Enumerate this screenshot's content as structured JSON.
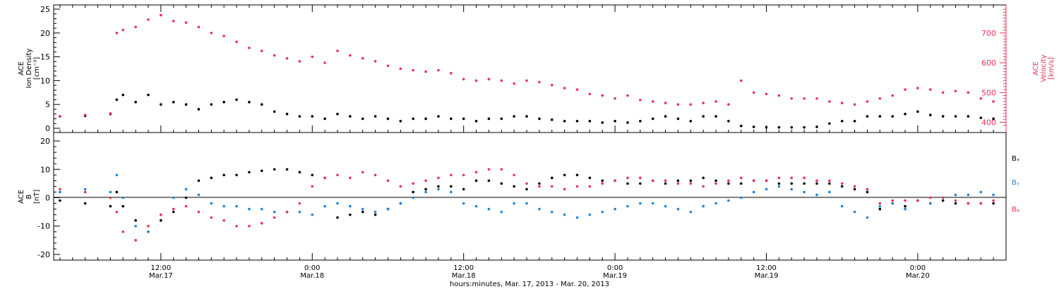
{
  "figure": {
    "xlabel": "hours:minutes, Mar. 17, 2013 - Mar. 20, 2013",
    "x_ticks": [
      {
        "time": "12:00",
        "date": "Mar.17"
      },
      {
        "time": "0:00",
        "date": "Mar.18"
      },
      {
        "time": "12:00",
        "date": "Mar.18"
      },
      {
        "time": "0:00",
        "date": "Mar.19"
      },
      {
        "time": "12:00",
        "date": "Mar.19"
      },
      {
        "time": "0:00",
        "date": "Mar.20"
      }
    ]
  },
  "chart_data": [
    {
      "type": "scatter",
      "panel": "top",
      "title": "",
      "x_unit": "hours since 2013-03-17 00:00",
      "xlim": [
        3.5,
        79
      ],
      "ylabel_left": [
        "ACE",
        "Ion Density",
        "[cm⁻³]"
      ],
      "ylim_left": [
        0,
        25
      ],
      "yticks_left": [
        "0",
        "5",
        "10",
        "15",
        "20",
        "25"
      ],
      "ylabel_right": [
        "ACE",
        "Velocity",
        "[km/s]"
      ],
      "ylim_right": [
        380,
        780
      ],
      "yticks_right": [
        "400",
        "500",
        "600",
        "700"
      ],
      "series": [
        {
          "name": "",
          "axis": "left",
          "color": "#000000",
          "x": [
            4,
            6,
            8,
            8.5,
            9,
            10,
            11,
            12,
            13,
            14,
            15,
            16,
            17,
            18,
            19,
            20,
            21,
            22,
            23,
            24,
            25,
            26,
            27,
            28,
            29,
            30,
            31,
            32,
            33,
            34,
            35,
            36,
            37,
            38,
            39,
            40,
            41,
            42,
            43,
            44,
            45,
            46,
            47,
            48,
            49,
            50,
            51,
            52,
            53,
            54,
            55,
            56,
            57,
            58,
            59,
            60,
            61,
            62,
            63,
            64,
            65,
            66,
            67,
            68,
            69,
            70,
            71,
            72,
            73,
            74,
            75,
            76,
            77,
            78
          ],
          "y": [
            2.5,
            2.6,
            3.0,
            6.0,
            7.0,
            5.5,
            7.0,
            5.0,
            5.5,
            5.0,
            4.0,
            5.0,
            5.5,
            6.0,
            5.5,
            5.0,
            3.5,
            3.0,
            2.5,
            2.5,
            2.0,
            3.0,
            2.5,
            2.0,
            2.5,
            2.0,
            1.5,
            2.0,
            2.0,
            2.5,
            2.0,
            2.0,
            1.5,
            2.0,
            2.0,
            2.5,
            2.5,
            2.0,
            1.8,
            1.5,
            1.5,
            1.5,
            1.2,
            1.5,
            1.2,
            1.5,
            2.0,
            2.5,
            2.0,
            1.5,
            2.5,
            2.5,
            1.5,
            0.5,
            0.3,
            0.2,
            0.2,
            0.2,
            0.2,
            0.3,
            1.0,
            1.5,
            1.5,
            2.5,
            2.5,
            2.5,
            3.0,
            3.5,
            2.8,
            2.5,
            2.5,
            2.5,
            2.2,
            2.0
          ]
        },
        {
          "name": "",
          "axis": "right",
          "color": "#e8325a",
          "x": [
            4,
            6,
            8,
            8.5,
            9,
            10,
            11,
            12,
            13,
            14,
            15,
            16,
            17,
            18,
            19,
            20,
            21,
            22,
            23,
            24,
            25,
            26,
            27,
            28,
            29,
            30,
            31,
            32,
            33,
            34,
            35,
            36,
            37,
            38,
            39,
            40,
            41,
            42,
            43,
            44,
            45,
            46,
            47,
            48,
            49,
            50,
            51,
            52,
            53,
            54,
            55,
            56,
            57,
            58,
            59,
            60,
            61,
            62,
            63,
            64,
            65,
            66,
            67,
            68,
            69,
            70,
            71,
            72,
            73,
            74,
            75,
            76,
            77,
            78
          ],
          "y": [
            420,
            425,
            430,
            700,
            710,
            720,
            745,
            760,
            740,
            735,
            720,
            700,
            690,
            670,
            650,
            640,
            625,
            615,
            605,
            620,
            600,
            640,
            625,
            615,
            605,
            590,
            580,
            575,
            570,
            575,
            565,
            545,
            540,
            545,
            540,
            530,
            540,
            535,
            525,
            515,
            510,
            495,
            490,
            480,
            490,
            475,
            470,
            465,
            460,
            460,
            465,
            470,
            460,
            540,
            500,
            495,
            490,
            480,
            480,
            480,
            470,
            465,
            460,
            470,
            480,
            490,
            510,
            515,
            510,
            500,
            505,
            500,
            480,
            470
          ]
        }
      ]
    },
    {
      "type": "scatter",
      "panel": "bottom",
      "title": "",
      "x_unit": "hours since 2013-03-17 00:00",
      "xlim": [
        3.5,
        79
      ],
      "ylabel_left": [
        "ACE",
        "B",
        "[nT]"
      ],
      "ylim": [
        -21,
        21
      ],
      "yticks": [
        "-20",
        "-10",
        "0",
        "10",
        "20"
      ],
      "zero_line": true,
      "legend_placement": "right",
      "series": [
        {
          "name": "Bₓ",
          "color": "#000000",
          "x": [
            4,
            6,
            8,
            8.5,
            9,
            10,
            11,
            12,
            13,
            14,
            15,
            16,
            17,
            18,
            19,
            20,
            21,
            22,
            23,
            24,
            25,
            26,
            27,
            28,
            29,
            30,
            31,
            32,
            33,
            34,
            35,
            36,
            37,
            38,
            39,
            40,
            41,
            42,
            43,
            44,
            45,
            46,
            47,
            48,
            49,
            50,
            51,
            52,
            53,
            54,
            55,
            56,
            57,
            58,
            59,
            60,
            61,
            62,
            63,
            64,
            65,
            66,
            67,
            68,
            69,
            70,
            71,
            72,
            73,
            74,
            75,
            76,
            77,
            78
          ],
          "y": [
            -1,
            -2,
            -3,
            2,
            -3,
            -8,
            -12,
            -8,
            -5,
            0,
            6,
            7,
            8,
            8,
            9,
            9.5,
            10,
            10,
            9,
            8,
            7,
            -7,
            -6,
            -5,
            -6,
            -4,
            -2,
            2,
            3,
            4,
            4,
            3,
            6,
            6,
            5,
            4,
            3,
            5,
            7,
            8,
            8,
            7,
            6,
            6,
            5,
            5,
            6,
            5,
            6,
            6,
            7,
            6,
            5,
            5,
            6,
            6,
            5,
            5,
            5,
            5,
            5,
            4,
            3,
            2,
            -4,
            -2,
            -3,
            -1,
            -2,
            -1,
            -2,
            -2,
            -2,
            -2
          ]
        },
        {
          "name": "Bᵧ",
          "color": "#1f84d8",
          "x": [
            4,
            6,
            8,
            8.5,
            9,
            10,
            11,
            12,
            13,
            14,
            15,
            16,
            17,
            18,
            19,
            20,
            21,
            22,
            23,
            24,
            25,
            26,
            27,
            28,
            29,
            30,
            31,
            32,
            33,
            34,
            35,
            36,
            37,
            38,
            39,
            40,
            41,
            42,
            43,
            44,
            45,
            46,
            47,
            48,
            49,
            50,
            51,
            52,
            53,
            54,
            55,
            56,
            57,
            58,
            59,
            60,
            61,
            62,
            63,
            64,
            65,
            66,
            67,
            68,
            69,
            70,
            71,
            72,
            73,
            74,
            75,
            76,
            77,
            78
          ],
          "y": [
            2,
            3,
            2,
            8,
            0,
            -10,
            -12,
            -6,
            0,
            3,
            1,
            -2,
            -3,
            -3,
            -4,
            -4,
            -5,
            -5,
            -5,
            -6,
            -3,
            -2,
            -3,
            -4,
            -5,
            -4,
            -2,
            0,
            2,
            3,
            2,
            -2,
            -3,
            -4,
            -5,
            -2,
            -2,
            -4,
            -5,
            -6,
            -7,
            -6,
            -5,
            -4,
            -3,
            -2,
            -2,
            -3,
            -4,
            -5,
            -3,
            -2,
            -1,
            0,
            2,
            3,
            4,
            3,
            2,
            1,
            2,
            -3,
            -5,
            -7,
            -3,
            -2,
            -4,
            -1,
            -2,
            0,
            1,
            1,
            2,
            1
          ]
        },
        {
          "name": "Bᵩ",
          "color": "#e8325a",
          "x": [
            4,
            6,
            8,
            8.5,
            9,
            10,
            11,
            12,
            13,
            14,
            15,
            16,
            17,
            18,
            19,
            20,
            21,
            22,
            23,
            24,
            25,
            26,
            27,
            28,
            29,
            30,
            31,
            32,
            33,
            34,
            35,
            36,
            37,
            38,
            39,
            40,
            41,
            42,
            43,
            44,
            45,
            46,
            47,
            48,
            49,
            50,
            51,
            52,
            53,
            54,
            55,
            56,
            57,
            58,
            59,
            60,
            61,
            62,
            63,
            64,
            65,
            66,
            67,
            68,
            69,
            70,
            71,
            72,
            73,
            74,
            75,
            76,
            77,
            78
          ],
          "y": [
            3,
            2,
            0,
            -5,
            -12,
            -15,
            -10,
            -6,
            -4,
            -3,
            -5,
            -7,
            -8,
            -10,
            -10,
            -9,
            -7,
            -5,
            -2,
            4,
            7,
            8,
            7,
            9,
            8,
            6,
            4,
            5,
            6,
            7,
            8,
            8,
            9,
            10,
            10,
            8,
            5,
            4,
            4,
            3,
            4,
            4,
            5,
            6,
            7,
            7,
            6,
            6,
            5,
            5,
            4,
            5,
            6,
            7,
            6,
            6,
            7,
            7,
            7,
            6,
            6,
            5,
            4,
            3,
            -2,
            -1,
            -1,
            -1,
            0,
            0,
            -1,
            -2,
            -2,
            -1
          ]
        }
      ]
    }
  ]
}
